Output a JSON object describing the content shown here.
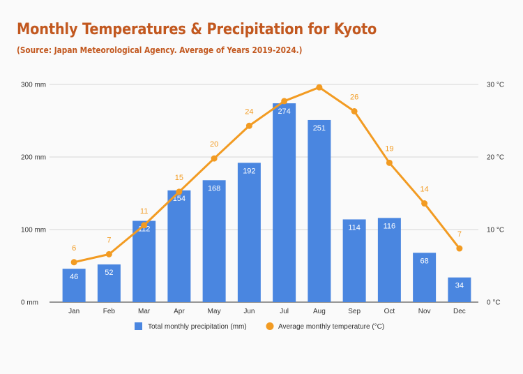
{
  "colors": {
    "title": "#c2581f",
    "bar": "#4a86e0",
    "line": "#f29b22",
    "grid": "#d6d6d6",
    "axis": "#333333"
  },
  "chart_data": {
    "type": "bar+line",
    "title": "Monthly Temperatures & Precipitation for Kyoto",
    "subtitle": "(Source: Japan Meteorological Agency. Average of Years 2019-2024.)",
    "categories": [
      "Jan",
      "Feb",
      "Mar",
      "Apr",
      "May",
      "Jun",
      "Jul",
      "Aug",
      "Sep",
      "Oct",
      "Nov",
      "Dec"
    ],
    "series": [
      {
        "name": "Total monthly precipitation (mm)",
        "type": "bar",
        "axis": "left",
        "values": [
          46,
          52,
          112,
          154,
          168,
          192,
          274,
          251,
          114,
          116,
          68,
          34
        ]
      },
      {
        "name": "Average monthly temperature (°C)",
        "type": "line",
        "axis": "right",
        "values": [
          5.5,
          6.6,
          10.6,
          15.2,
          19.8,
          24.3,
          27.7,
          29.6,
          26.3,
          19.2,
          13.6,
          7.4
        ],
        "labels": [
          "6",
          "7",
          "11",
          "15",
          "20",
          "24",
          "28",
          "30",
          "26",
          "19",
          "14",
          "7"
        ],
        "label_visible": [
          true,
          true,
          true,
          true,
          true,
          true,
          false,
          false,
          true,
          true,
          true,
          true
        ]
      }
    ],
    "y_left": {
      "range": [
        0,
        300
      ],
      "ticks": [
        0,
        100,
        200,
        300
      ],
      "tick_labels": [
        "0 mm",
        "100 mm",
        "200 mm",
        "300 mm"
      ]
    },
    "y_right": {
      "range": [
        0,
        30
      ],
      "ticks": [
        0,
        10,
        20,
        30
      ],
      "tick_labels": [
        "0 °C",
        "10 °C",
        "20 °C",
        "30 °C"
      ]
    },
    "grid": true,
    "legend": "bottom"
  }
}
